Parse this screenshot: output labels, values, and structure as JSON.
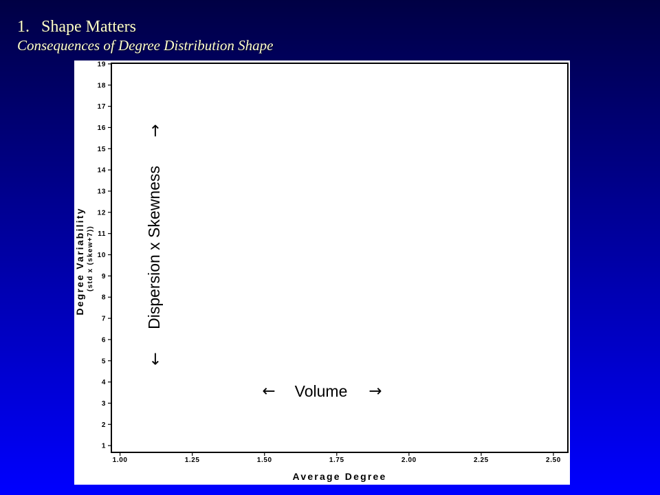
{
  "slide": {
    "number": "1.",
    "title": "Shape Matters",
    "subtitle": "Consequences of Degree Distribution Shape"
  },
  "colors": {
    "background_top": "#000044",
    "background_bottom": "#0000ff",
    "title_text": "#ffffcc",
    "chart_background": "#ffffff",
    "chart_ink": "#000000"
  },
  "chart_data": {
    "type": "scatter",
    "series": [],
    "xlabel": "Average Degree",
    "ylabel": "Degree Variability",
    "ylabel_sub": "(std x (skew+7))",
    "xlim": [
      0.97,
      2.55
    ],
    "ylim": [
      0.68,
      19.03
    ],
    "x_ticks": [
      "1.00",
      "1.25",
      "1.50",
      "1.75",
      "2.00",
      "2.25",
      "2.50"
    ],
    "y_ticks": [
      "1",
      "2",
      "3",
      "4",
      "5",
      "6",
      "7",
      "8",
      "9",
      "10",
      "11",
      "12",
      "13",
      "14",
      "15",
      "16",
      "17",
      "18",
      "19"
    ],
    "grid": false,
    "y_annotation": {
      "label": "Dispersion x Skewness",
      "arrow_low": "←",
      "arrow_high": "→"
    },
    "x_annotation": {
      "label": "Volume",
      "arrow_low": "←",
      "arrow_high": "→"
    }
  }
}
